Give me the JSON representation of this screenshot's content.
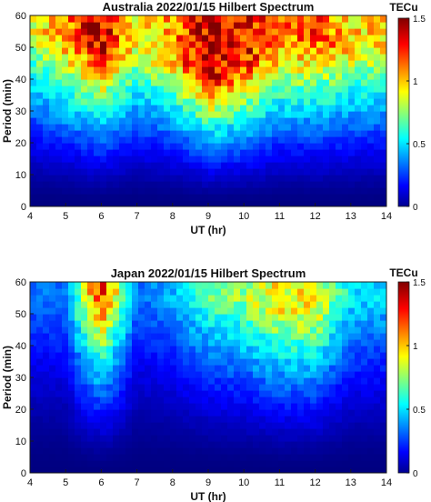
{
  "colors": {
    "colormap": "jet",
    "axis": "#1a1a1a",
    "background": "#ffffff"
  },
  "chart_data": [
    {
      "type": "heatmap",
      "title": "Australia 2022/01/15 Hilbert Spectrum",
      "xlabel": "UT (hr)",
      "ylabel": "Period (min)",
      "colorbar_label": "TECu",
      "xlim": [
        4,
        14
      ],
      "ylim": [
        0,
        60
      ],
      "clim": [
        0,
        1.5
      ],
      "x_ticks": [
        4,
        5,
        6,
        7,
        8,
        9,
        10,
        11,
        12,
        13,
        14
      ],
      "y_ticks": [
        0,
        10,
        20,
        30,
        40,
        50,
        60
      ],
      "colorbar_ticks": [
        0,
        0.5,
        1,
        1.5
      ],
      "grid": false,
      "intensity_profile": {
        "ut": [
          4,
          5,
          6,
          7,
          8,
          9,
          10,
          11,
          12,
          13,
          14
        ],
        "peak_period_min": [
          55,
          52,
          50,
          50,
          48,
          42,
          45,
          50,
          52,
          50,
          52
        ],
        "peak_tecu": [
          0.9,
          1.1,
          1.4,
          0.9,
          1.1,
          1.4,
          1.3,
          1.1,
          1.2,
          1.0,
          1.0
        ]
      }
    },
    {
      "type": "heatmap",
      "title": "Japan 2022/01/15 Hilbert Spectrum",
      "xlabel": "UT (hr)",
      "ylabel": "Period (min)",
      "colorbar_label": "TECu",
      "xlim": [
        4,
        14
      ],
      "ylim": [
        0,
        60
      ],
      "clim": [
        0,
        1.5
      ],
      "x_ticks": [
        4,
        5,
        6,
        7,
        8,
        9,
        10,
        11,
        12,
        13,
        14
      ],
      "y_ticks": [
        0,
        10,
        20,
        30,
        40,
        50,
        60
      ],
      "colorbar_ticks": [
        0,
        0.5,
        1,
        1.5
      ],
      "grid": false,
      "intensity_profile": {
        "ut": [
          4,
          5,
          6,
          7,
          8,
          9,
          10,
          11,
          12,
          13,
          14
        ],
        "peak_period_min": [
          55,
          52,
          56,
          55,
          55,
          56,
          55,
          52,
          50,
          55,
          55
        ],
        "peak_tecu": [
          0.35,
          0.35,
          1.3,
          0.35,
          0.45,
          0.7,
          0.8,
          0.95,
          0.9,
          0.55,
          0.5
        ]
      }
    }
  ]
}
